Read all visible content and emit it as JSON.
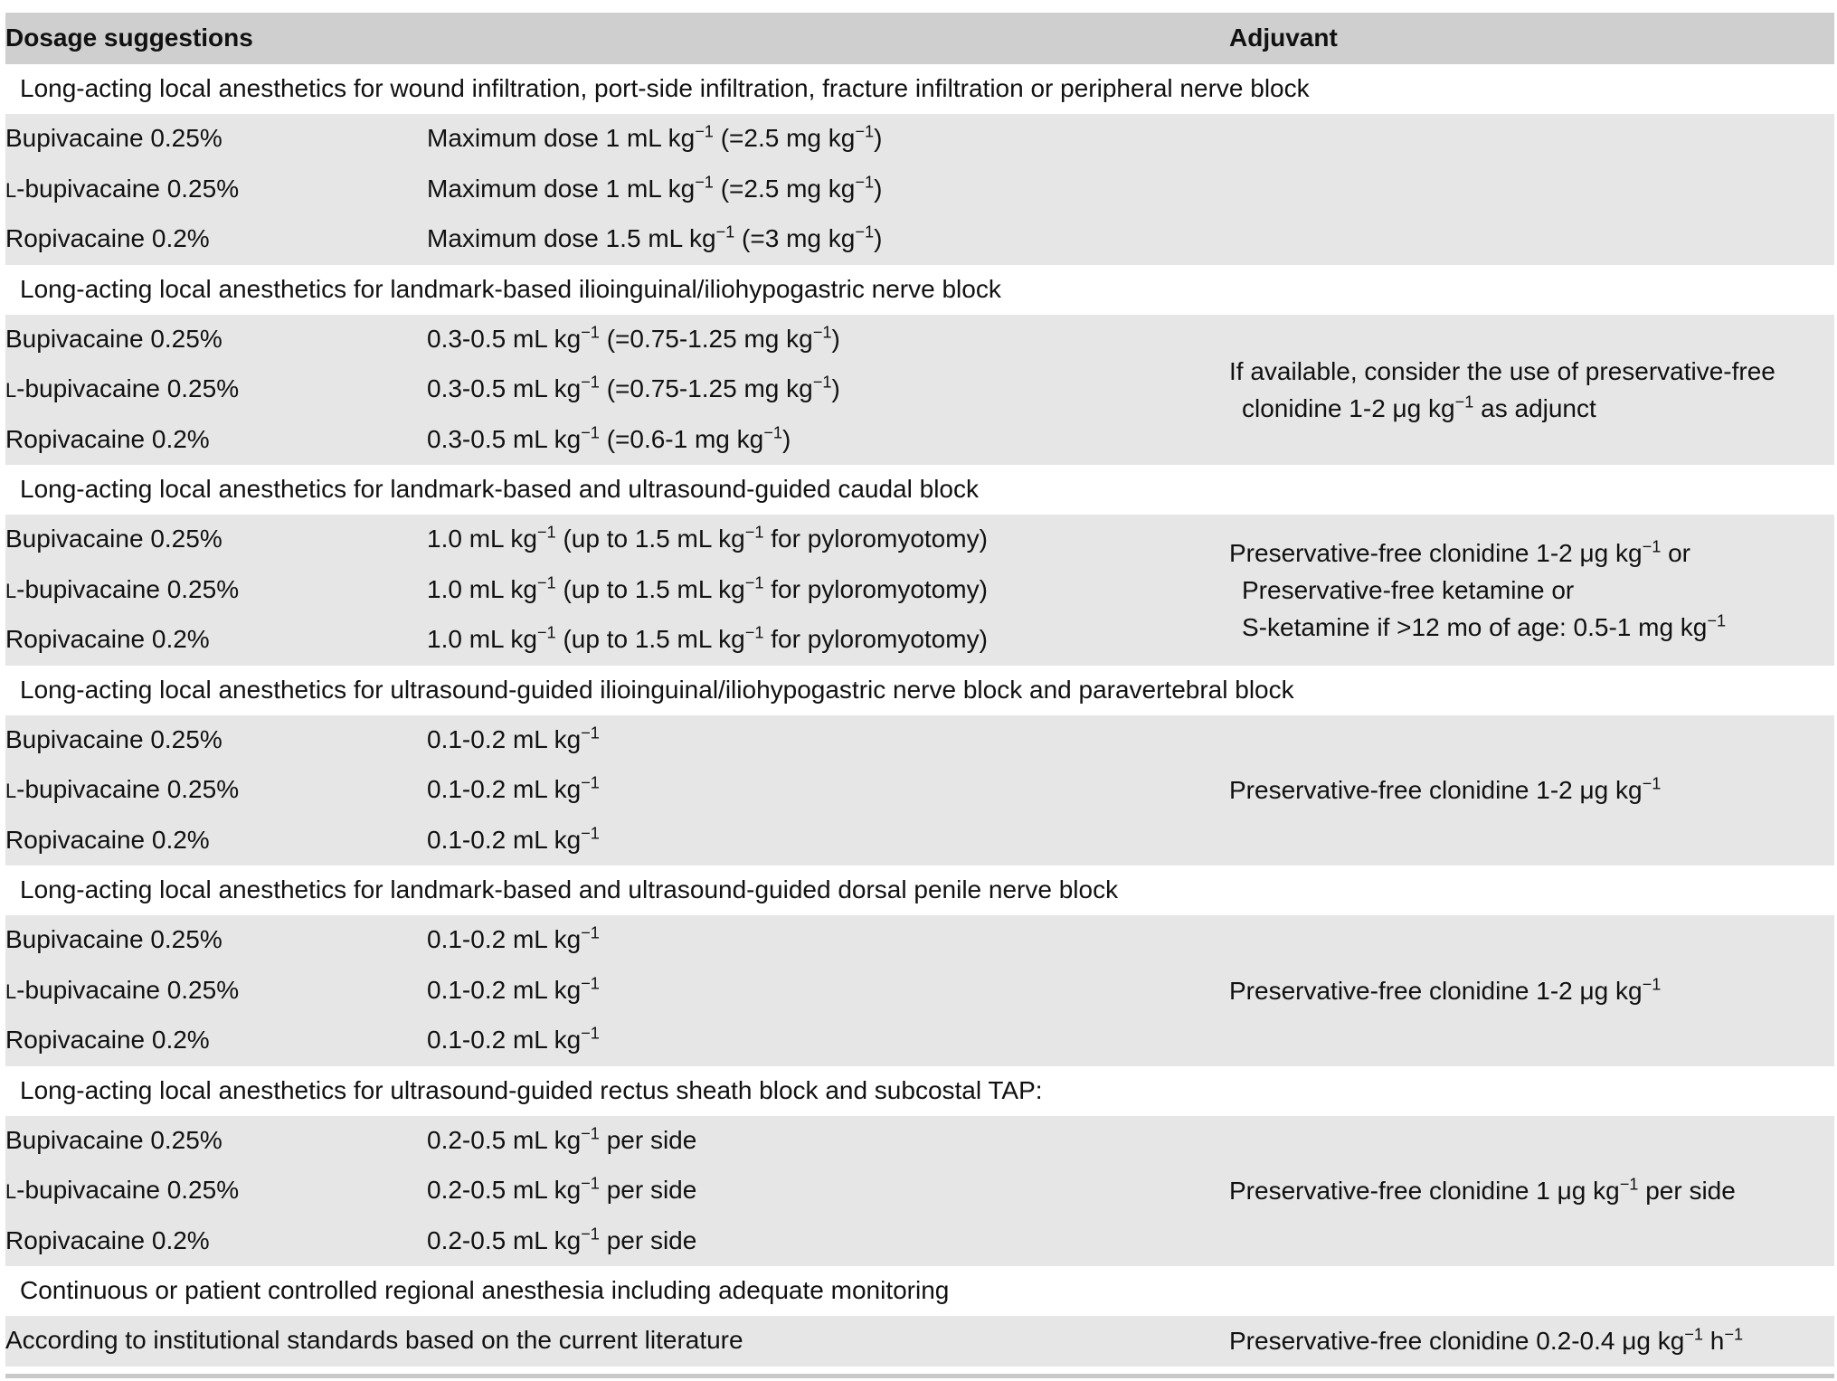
{
  "header": {
    "col_dosage": "Dosage suggestions",
    "col_adjuvant": "Adjuvant"
  },
  "sections": [
    {
      "title": "Long-acting local anesthetics for wound infiltration, port-side infiltration, fracture infiltration or peripheral nerve block",
      "rows": [
        {
          "drug": "Bupivacaine 0.25%",
          "dose": "Maximum dose 1 mL kg⁻¹ (=2.5 mg kg⁻¹)"
        },
        {
          "drug": "l-bupivacaine 0.25%",
          "dose": "Maximum dose 1 mL kg⁻¹ (=2.5 mg kg⁻¹)"
        },
        {
          "drug": "Ropivacaine 0.2%",
          "dose": "Maximum dose 1.5 mL kg⁻¹ (=3 mg kg⁻¹)"
        }
      ],
      "adjuvant": []
    },
    {
      "title": "Long-acting local anesthetics for landmark-based ilioinguinal/iliohypogastric nerve block",
      "rows": [
        {
          "drug": "Bupivacaine 0.25%",
          "dose": "0.3-0.5 mL kg⁻¹ (=0.75-1.25 mg kg⁻¹)"
        },
        {
          "drug": "l-bupivacaine 0.25%",
          "dose": "0.3-0.5 mL kg⁻¹ (=0.75-1.25 mg kg⁻¹)"
        },
        {
          "drug": "Ropivacaine 0.2%",
          "dose": "0.3-0.5 mL kg⁻¹ (=0.6-1 mg kg⁻¹)"
        }
      ],
      "adjuvant": [
        "If available, consider the use of preservative-free",
        "clonidine 1-2 μg kg⁻¹ as adjunct"
      ]
    },
    {
      "title": "Long-acting local anesthetics for landmark-based and ultrasound-guided caudal block",
      "rows": [
        {
          "drug": "Bupivacaine 0.25%",
          "dose": "1.0 mL kg⁻¹ (up to 1.5 mL kg⁻¹ for pyloromyotomy)"
        },
        {
          "drug": "l-bupivacaine 0.25%",
          "dose": "1.0 mL kg⁻¹ (up to 1.5 mL kg⁻¹ for pyloromyotomy)"
        },
        {
          "drug": "Ropivacaine 0.2%",
          "dose": "1.0 mL kg⁻¹ (up to 1.5 mL kg⁻¹ for pyloromyotomy)"
        }
      ],
      "adjuvant": [
        "Preservative-free clonidine 1-2 μg kg⁻¹ or",
        "Preservative-free ketamine or",
        "S-ketamine if >12 mo of age: 0.5-1 mg kg⁻¹"
      ]
    },
    {
      "title": "Long-acting local anesthetics for ultrasound-guided ilioinguinal/iliohypogastric nerve block and paravertebral block",
      "rows": [
        {
          "drug": "Bupivacaine 0.25%",
          "dose": "0.1-0.2 mL kg⁻¹"
        },
        {
          "drug": "l-bupivacaine 0.25%",
          "dose": "0.1-0.2 mL kg⁻¹"
        },
        {
          "drug": "Ropivacaine 0.2%",
          "dose": "0.1-0.2 mL kg⁻¹"
        }
      ],
      "adjuvant": [
        "Preservative-free clonidine 1-2 μg kg⁻¹"
      ]
    },
    {
      "title": "Long-acting local anesthetics for landmark-based and ultrasound-guided dorsal penile nerve block",
      "rows": [
        {
          "drug": "Bupivacaine 0.25%",
          "dose": "0.1-0.2 mL kg⁻¹"
        },
        {
          "drug": "l-bupivacaine 0.25%",
          "dose": "0.1-0.2 mL kg⁻¹"
        },
        {
          "drug": "Ropivacaine 0.2%",
          "dose": "0.1-0.2 mL kg⁻¹"
        }
      ],
      "adjuvant": [
        "Preservative-free clonidine 1-2 μg kg⁻¹"
      ]
    },
    {
      "title": "Long-acting local anesthetics for ultrasound-guided rectus sheath block and subcostal TAP:",
      "rows": [
        {
          "drug": "Bupivacaine 0.25%",
          "dose": "0.2-0.5 mL kg⁻¹ per side"
        },
        {
          "drug": "l-bupivacaine 0.25%",
          "dose": "0.2-0.5 mL kg⁻¹ per side"
        },
        {
          "drug": "Ropivacaine 0.2%",
          "dose": "0.2-0.5 mL kg⁻¹ per side"
        }
      ],
      "adjuvant": [
        "Preservative-free clonidine 1 μg kg⁻¹ per side"
      ]
    },
    {
      "title": "Continuous or patient controlled regional anesthesia including adequate monitoring",
      "rows": [
        {
          "drug": "According to institutional standards based on the current literature",
          "dose": ""
        }
      ],
      "adjuvant": [
        "Preservative-free clonidine 0.2-0.4 μg kg⁻¹ h⁻¹"
      ]
    }
  ]
}
